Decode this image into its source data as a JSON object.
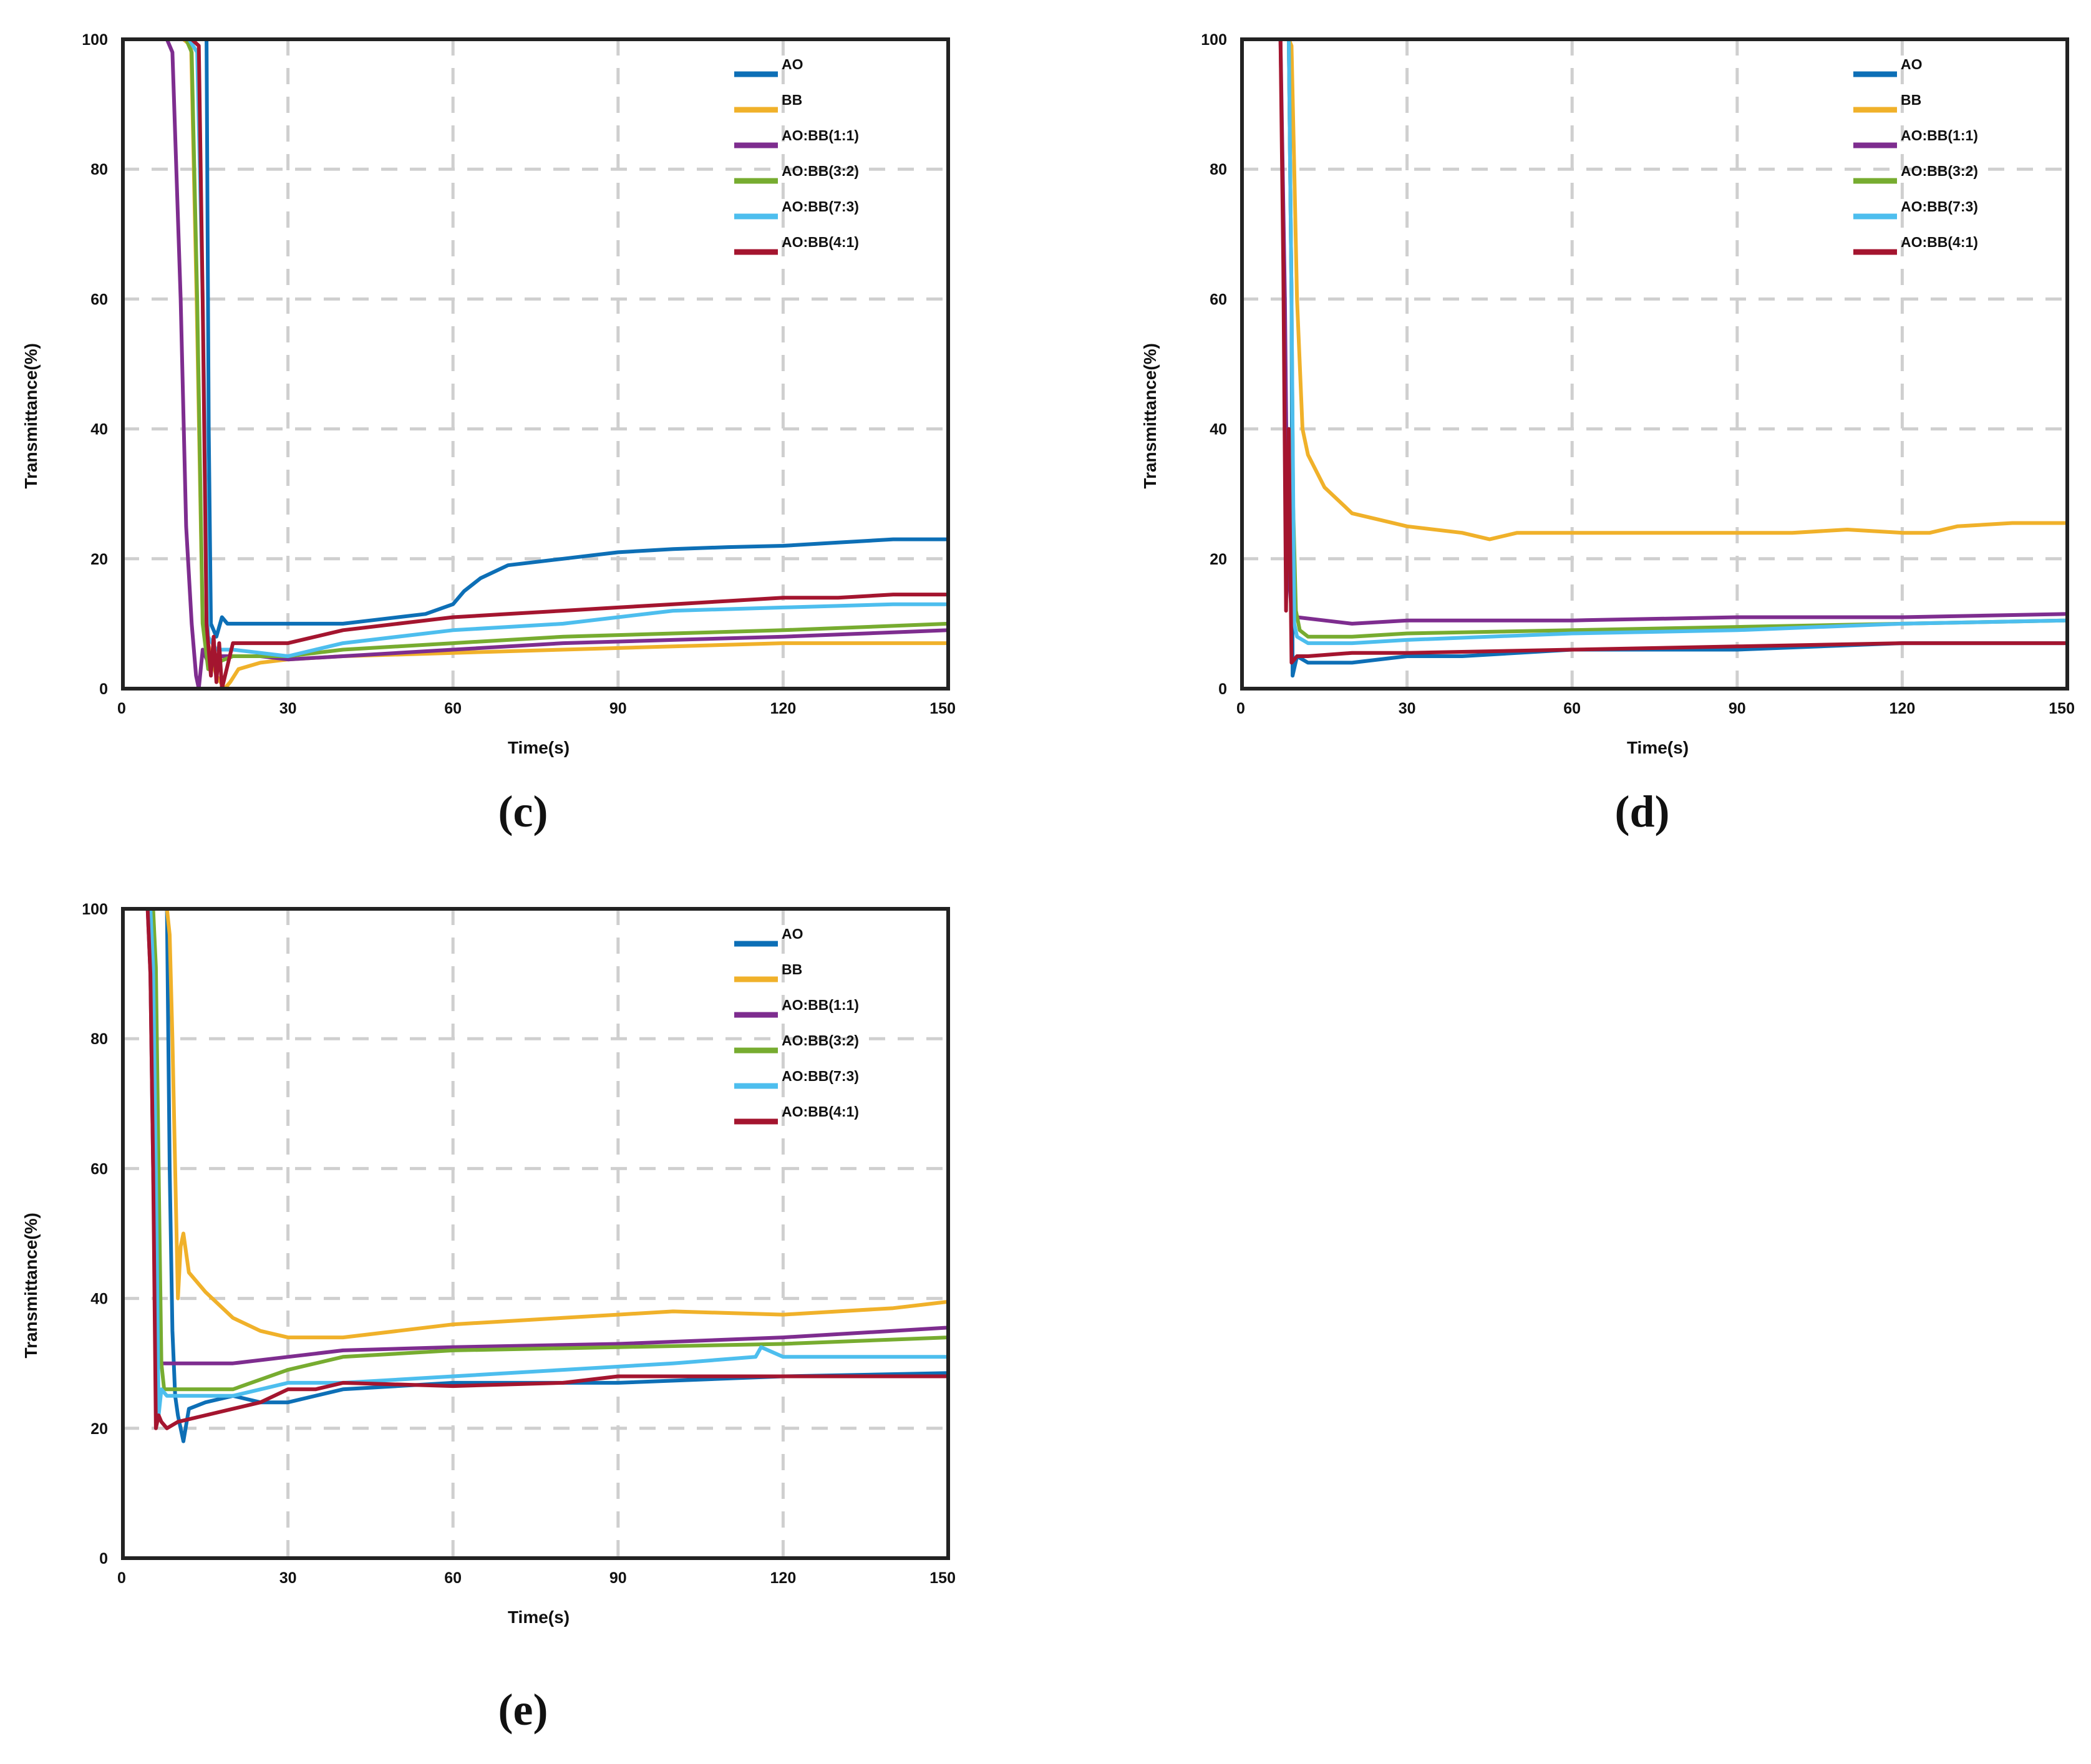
{
  "colors": {
    "AO": "#0d6fb6",
    "BB": "#f0b12a",
    "AO:BB(1:1)": "#7e2d8f",
    "AO:BB(3:2)": "#77ac30",
    "AO:BB(7:3)": "#4dbeee",
    "AO:BB(4:1)": "#a4152f"
  },
  "chart_data": [
    {
      "panel": "(c)",
      "type": "line",
      "xlabel": "Time(s)",
      "ylabel": "Transmittance(%)",
      "xlim": [
        0,
        150
      ],
      "ylim": [
        0,
        100
      ],
      "xticks": [
        "0",
        "30",
        "60",
        "90",
        "120",
        "150"
      ],
      "yticks": [
        "0",
        "20",
        "40",
        "60",
        "80",
        "100"
      ],
      "grid": true,
      "legend": "top-right",
      "series": [
        {
          "name": "AO",
          "x": [
            0,
            14,
            15.2,
            15.6,
            16,
            17,
            18,
            19,
            20,
            30,
            40,
            45,
            50,
            55,
            60,
            62,
            65,
            70,
            80,
            90,
            100,
            110,
            120,
            130,
            140,
            150
          ],
          "y": [
            100,
            100,
            100,
            40,
            10,
            8,
            11,
            10,
            10,
            10,
            10,
            10.5,
            11,
            11.5,
            13,
            15,
            17,
            19,
            20,
            21,
            21.5,
            21.8,
            22,
            22.5,
            23,
            23
          ]
        },
        {
          "name": "BB",
          "x": [
            0,
            11,
            12.4,
            13.4,
            14.5,
            17,
            18.5,
            19.5,
            21,
            25,
            30,
            40,
            60,
            80,
            100,
            120,
            150
          ],
          "y": [
            100,
            100,
            99,
            60,
            10,
            2,
            0,
            1,
            3,
            4,
            4.5,
            5,
            5.5,
            6,
            6.5,
            7,
            7
          ]
        },
        {
          "name": "AO:BB(1:1)",
          "x": [
            0,
            8,
            9,
            10.5,
            11.5,
            12.5,
            13.3,
            13.8,
            14.5,
            15.5,
            17,
            20,
            25,
            30,
            40,
            60,
            80,
            100,
            120,
            150
          ],
          "y": [
            100,
            100,
            98,
            60,
            25,
            10,
            2,
            0,
            6,
            4,
            5,
            5,
            5,
            4.5,
            5,
            6,
            7,
            7.5,
            8,
            9
          ]
        },
        {
          "name": "AO:BB(3:2)",
          "x": [
            0,
            11.5,
            12.5,
            13.5,
            14.5,
            15.5,
            17,
            20,
            25,
            30,
            40,
            60,
            80,
            100,
            120,
            150
          ],
          "y": [
            100,
            100,
            98,
            60,
            10,
            3,
            4,
            5,
            5,
            5,
            6,
            7,
            8,
            8.5,
            9,
            10
          ]
        },
        {
          "name": "AO:BB(7:3)",
          "x": [
            0,
            12,
            13.5,
            14.5,
            15.5,
            17,
            20,
            30,
            40,
            60,
            80,
            90,
            100,
            120,
            140,
            150
          ],
          "y": [
            100,
            100,
            98,
            60,
            8,
            6,
            6,
            5,
            7,
            9,
            10,
            11,
            12,
            12.5,
            13,
            13
          ]
        },
        {
          "name": "AO:BB(4:1)",
          "x": [
            0,
            12.5,
            13.8,
            14.5,
            15.2,
            16,
            16.5,
            17,
            17.5,
            18,
            20,
            25,
            30,
            35,
            40,
            50,
            60,
            70,
            80,
            90,
            100,
            110,
            120,
            130,
            140,
            150
          ],
          "y": [
            100,
            100,
            99,
            60,
            10,
            2,
            8,
            1,
            7,
            0,
            7,
            7,
            7,
            8,
            9,
            10,
            11,
            11.5,
            12,
            12.5,
            13,
            13.5,
            14,
            14,
            14.5,
            14.5
          ]
        }
      ]
    },
    {
      "panel": "(d)",
      "type": "line",
      "xlabel": "Time(s)",
      "ylabel": "Transmittance(%)",
      "xlim": [
        0,
        150
      ],
      "ylim": [
        0,
        100
      ],
      "xticks": [
        "0",
        "30",
        "60",
        "90",
        "120",
        "150"
      ],
      "yticks": [
        "0",
        "20",
        "40",
        "60",
        "80",
        "100"
      ],
      "grid": true,
      "legend": "top-right",
      "series": [
        {
          "name": "AO",
          "x": [
            0,
            8.5,
            9,
            9.2,
            10,
            12,
            20,
            30,
            40,
            60,
            90,
            120,
            150
          ],
          "y": [
            100,
            100,
            60,
            2,
            5,
            4,
            4,
            5,
            5,
            6,
            6,
            7,
            7
          ]
        },
        {
          "name": "BB",
          "x": [
            0,
            8.5,
            9,
            9.5,
            10,
            11,
            12,
            15,
            20,
            25,
            30,
            40,
            45,
            50,
            60,
            80,
            90,
            100,
            110,
            120,
            125,
            130,
            140,
            150
          ],
          "y": [
            100,
            100,
            99,
            80,
            60,
            40,
            36,
            31,
            27,
            26,
            25,
            24,
            23,
            24,
            24,
            24,
            24,
            24,
            24.5,
            24,
            24,
            25,
            25.5,
            25.5
          ]
        },
        {
          "name": "AO:BB(1:1)",
          "x": [
            0,
            7,
            7.8,
            8.3,
            9,
            10,
            15,
            20,
            30,
            60,
            90,
            120,
            150
          ],
          "y": [
            100,
            100,
            60,
            20,
            12,
            11,
            10.5,
            10,
            10.5,
            10.5,
            11,
            11,
            11.5
          ]
        },
        {
          "name": "AO:BB(3:2)",
          "x": [
            0,
            8.5,
            9,
            9.3,
            9.8,
            10.5,
            12,
            20,
            30,
            60,
            90,
            120,
            150
          ],
          "y": [
            100,
            100,
            60,
            28,
            12,
            9,
            8,
            8,
            8.5,
            9,
            9.5,
            10,
            10.5
          ]
        },
        {
          "name": "AO:BB(7:3)",
          "x": [
            0,
            8.5,
            9,
            9.5,
            10,
            12,
            20,
            30,
            60,
            90,
            120,
            150
          ],
          "y": [
            100,
            100,
            60,
            10,
            8,
            7,
            7,
            7.5,
            8.5,
            9,
            10,
            10.5
          ]
        },
        {
          "name": "AO:BB(4:1)",
          "x": [
            0,
            7,
            7.5,
            8,
            8.5,
            9,
            10,
            12,
            20,
            30,
            60,
            90,
            120,
            150
          ],
          "y": [
            100,
            100,
            65,
            12,
            40,
            4,
            5,
            5,
            5.5,
            5.5,
            6,
            6.5,
            7,
            7
          ]
        }
      ]
    },
    {
      "panel": "(e)",
      "type": "line",
      "xlabel": "Time(s)",
      "ylabel": "Transmittance(%)",
      "xlim": [
        0,
        150
      ],
      "ylim": [
        0,
        100
      ],
      "xticks": [
        "0",
        "30",
        "60",
        "90",
        "120",
        "150"
      ],
      "yticks": [
        "0",
        "20",
        "40",
        "60",
        "80",
        "100"
      ],
      "grid": true,
      "legend": "top-right",
      "series": [
        {
          "name": "AO",
          "x": [
            0,
            8,
            8.5,
            9,
            9.5,
            10,
            10.5,
            11,
            12,
            15,
            20,
            25,
            30,
            40,
            60,
            90,
            120,
            150
          ],
          "y": [
            100,
            100,
            60,
            35,
            25,
            22,
            20,
            18,
            23,
            24,
            25,
            24,
            24,
            26,
            27,
            27,
            28,
            28.5
          ]
        },
        {
          "name": "BB",
          "x": [
            0,
            8,
            8.5,
            9,
            9.5,
            10,
            10.5,
            11,
            12,
            15,
            20,
            25,
            30,
            40,
            50,
            60,
            80,
            90,
            100,
            120,
            140,
            150
          ],
          "y": [
            100,
            100,
            96,
            80,
            60,
            40,
            48,
            50,
            44,
            41,
            37,
            35,
            34,
            34,
            35,
            36,
            37,
            37.5,
            38,
            37.5,
            38.5,
            39.5
          ]
        },
        {
          "name": "AO:BB(1:1)",
          "x": [
            0,
            4.5,
            5,
            5.5,
            6,
            7,
            8,
            10,
            12,
            20,
            30,
            40,
            60,
            90,
            120,
            150
          ],
          "y": [
            100,
            100,
            90,
            60,
            37,
            30,
            30,
            30,
            30,
            30,
            31,
            32,
            32.5,
            33,
            34,
            35.5
          ]
        },
        {
          "name": "AO:BB(3:2)",
          "x": [
            0,
            5.5,
            6,
            6.5,
            7,
            7.5,
            8,
            10,
            20,
            30,
            40,
            60,
            90,
            120,
            150
          ],
          "y": [
            100,
            100,
            91,
            60,
            30,
            26,
            26,
            26,
            26,
            29,
            31,
            32,
            32.5,
            33,
            34
          ]
        },
        {
          "name": "AO:BB(7:3)",
          "x": [
            0,
            5,
            5.5,
            6,
            6.5,
            7,
            8,
            10,
            20,
            30,
            40,
            60,
            80,
            100,
            115,
            116,
            120,
            140,
            150
          ],
          "y": [
            100,
            100,
            91,
            60,
            22,
            26,
            25,
            25,
            25,
            27,
            27,
            28,
            29,
            30,
            31,
            32.5,
            31,
            31,
            31
          ]
        },
        {
          "name": "AO:BB(4:1)",
          "x": [
            0,
            4.5,
            5,
            5.5,
            6,
            6.5,
            7,
            8,
            10,
            15,
            20,
            25,
            30,
            35,
            40,
            60,
            80,
            90,
            100,
            120,
            150
          ],
          "y": [
            100,
            100,
            90,
            60,
            20,
            22,
            21,
            20,
            21,
            22,
            23,
            24,
            26,
            26,
            27,
            26.5,
            27,
            28,
            28,
            28,
            28
          ]
        }
      ]
    }
  ]
}
